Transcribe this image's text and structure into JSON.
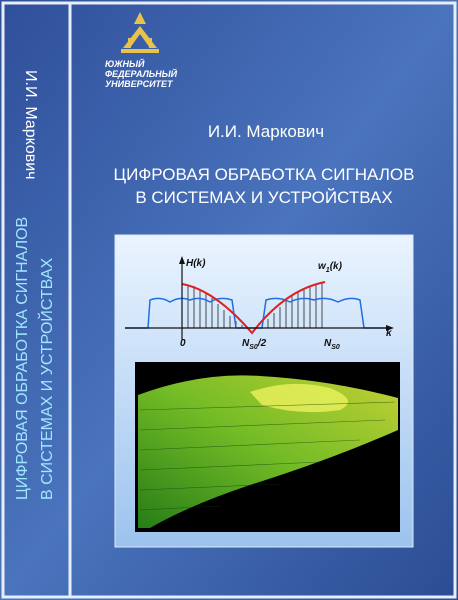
{
  "logo": {
    "lines": [
      "ЮЖНЫЙ",
      "ФЕДЕРАЛЬНЫЙ",
      "УНИВЕРСИТЕТ"
    ]
  },
  "spine": {
    "author": "И.И. Маркович",
    "title": [
      "ЦИФРОВАЯ ОБРАБОТКА СИГНАЛОВ",
      "В СИСТЕМАХ И УСТРОЙСТВАХ"
    ]
  },
  "cover": {
    "author": "И.И. Маркович",
    "title": [
      "ЦИФРОВАЯ ОБРАБОТКА СИГНАЛОВ",
      "В СИСТЕМАХ И УСТРОЙСТВАХ"
    ]
  },
  "figure": {
    "h_label": "H(k)",
    "w_label": [
      "w",
      "1",
      "(k)"
    ],
    "zero": "0",
    "half": [
      "N",
      "S0",
      "/2"
    ],
    "full": [
      "N",
      "S0"
    ],
    "k": "k"
  }
}
